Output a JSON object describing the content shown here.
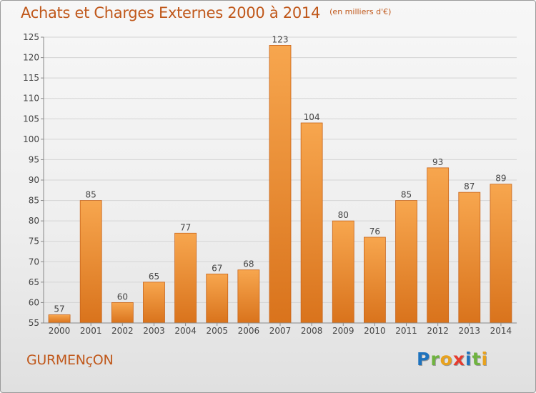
{
  "header": {
    "title": "Achats et Charges Externes 2000 à 2014",
    "subtitle": "(en milliers d'€)"
  },
  "footer": {
    "location": "GURMENçON",
    "logo_letters": [
      "P",
      "r",
      "o",
      "x",
      "i",
      "t",
      "i"
    ],
    "logo_colors": [
      "#1e73be",
      "#6fb33f",
      "#e8a21e",
      "#e63b2e",
      "#1e73be",
      "#6fb33f",
      "#e8a21e"
    ]
  },
  "colors": {
    "bar_light": "#f7a64e",
    "bar_dark": "#d9731c",
    "bar_edge": "#c8641a",
    "title": "#c0581b"
  },
  "chart_data": {
    "type": "bar",
    "categories": [
      "2000",
      "2001",
      "2002",
      "2003",
      "2004",
      "2005",
      "2006",
      "2007",
      "2008",
      "2009",
      "2010",
      "2011",
      "2012",
      "2013",
      "2014"
    ],
    "values": [
      57,
      85,
      60,
      65,
      77,
      67,
      68,
      123,
      104,
      80,
      76,
      85,
      93,
      87,
      89
    ],
    "title": "Achats et Charges Externes 2000 à 2014",
    "subtitle": "(en milliers d'€)",
    "ylim": [
      55,
      125
    ],
    "yticks": [
      55,
      60,
      65,
      70,
      75,
      80,
      85,
      90,
      95,
      100,
      105,
      110,
      115,
      120,
      125
    ],
    "grid": true,
    "data_labels": true
  }
}
